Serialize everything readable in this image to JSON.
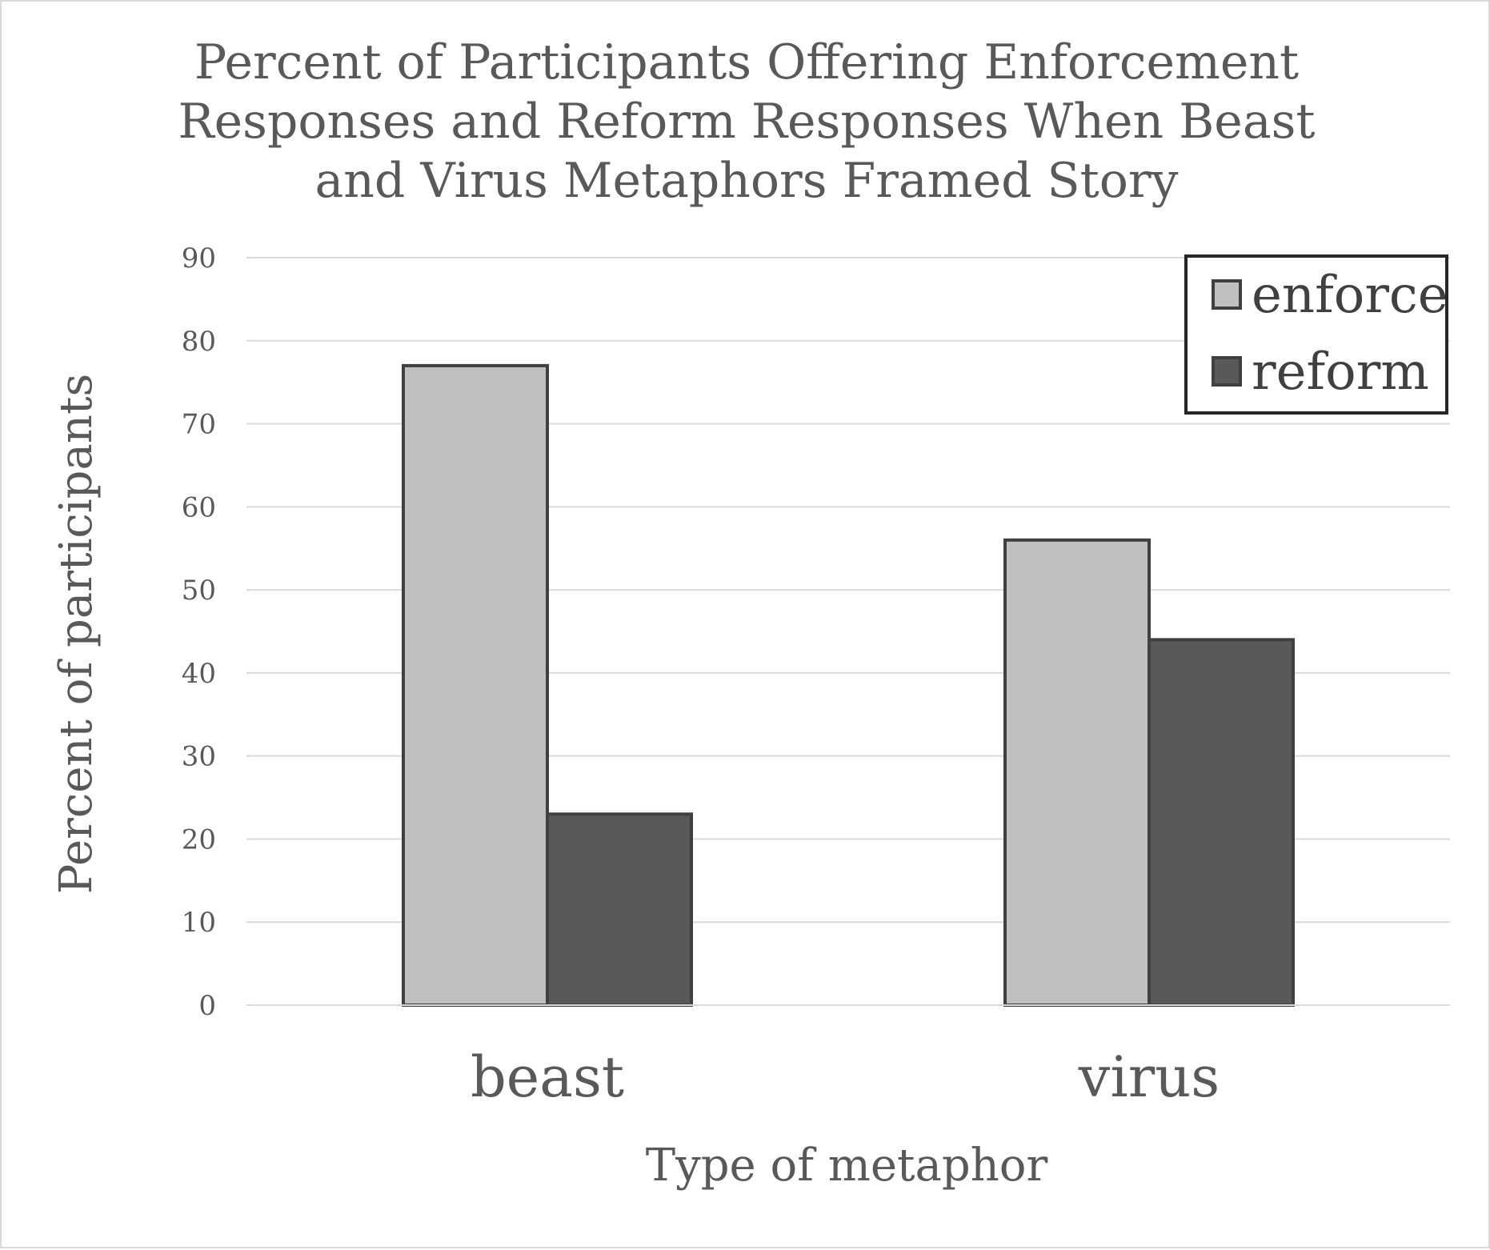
{
  "chart_data": {
    "type": "bar",
    "title_lines": [
      "Percent of Participants Offering Enforcement",
      "Responses and Reform Responses When Beast",
      "and Virus Metaphors Framed Story"
    ],
    "xlabel": "Type of metaphor",
    "ylabel": "Percent of participants",
    "categories": [
      "beast",
      "virus"
    ],
    "series": [
      {
        "name": "enforce",
        "values": [
          77,
          56
        ],
        "color": "#bfbfbf"
      },
      {
        "name": "reform",
        "values": [
          23,
          44
        ],
        "color": "#595959"
      }
    ],
    "ylim": [
      0,
      90
    ],
    "yticks": [
      "0",
      "10",
      "20",
      "30",
      "40",
      "50",
      "60",
      "70",
      "80",
      "90"
    ],
    "grid": true,
    "legend_position": "top-right",
    "bar_border_color": "#404040",
    "gridline_color": "#d9d9d9"
  }
}
